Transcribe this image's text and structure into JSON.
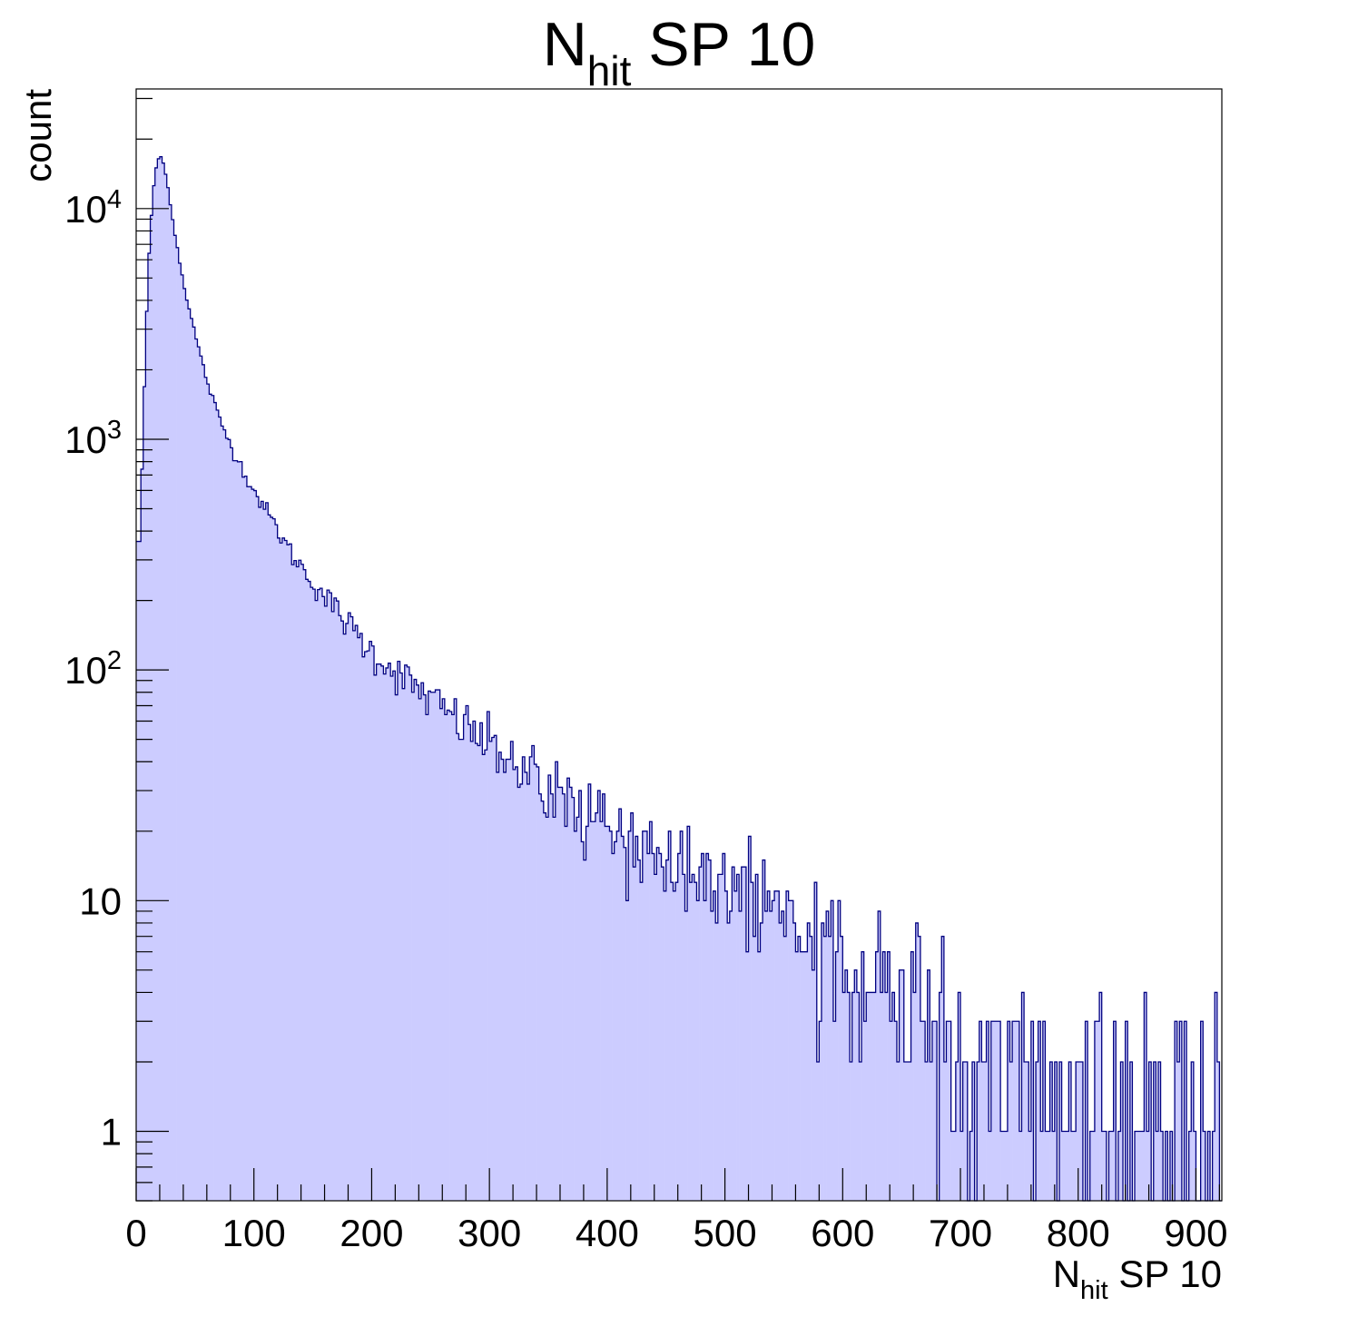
{
  "chart_data": {
    "type": "bar",
    "title": {
      "main": "N",
      "sub": "hit",
      "rest": " SP 10"
    },
    "xlabel": {
      "main": "N",
      "sub": "hit",
      "rest": " SP 10"
    },
    "ylabel": "count",
    "xlim": [
      0,
      922
    ],
    "ylim": [
      0.5,
      33000
    ],
    "yscale": "log",
    "grid": false,
    "legend": "none",
    "bin_width": 2,
    "x_ticks": [
      {
        "value": 0,
        "label": "0"
      },
      {
        "value": 100,
        "label": "100"
      },
      {
        "value": 200,
        "label": "200"
      },
      {
        "value": 300,
        "label": "300"
      },
      {
        "value": 400,
        "label": "400"
      },
      {
        "value": 500,
        "label": "500"
      },
      {
        "value": 600,
        "label": "600"
      },
      {
        "value": 700,
        "label": "700"
      },
      {
        "value": 800,
        "label": "800"
      },
      {
        "value": 900,
        "label": "900"
      }
    ],
    "y_ticks": [
      {
        "value": 1,
        "label": "1",
        "exp": ""
      },
      {
        "value": 10,
        "label": "10",
        "exp": ""
      },
      {
        "value": 100,
        "label": "10",
        "exp": "2"
      },
      {
        "value": 1000,
        "label": "10",
        "exp": "3"
      },
      {
        "value": 10000,
        "label": "10",
        "exp": "4"
      }
    ],
    "colors": {
      "fill": "#ccccff",
      "line": "#000080"
    },
    "profile_points": [
      {
        "x": 0,
        "y": 500
      },
      {
        "x": 2,
        "y": 260
      },
      {
        "x": 4,
        "y": 500
      },
      {
        "x": 6,
        "y": 1100
      },
      {
        "x": 8,
        "y": 2600
      },
      {
        "x": 10,
        "y": 5000
      },
      {
        "x": 12,
        "y": 8000
      },
      {
        "x": 14,
        "y": 11000
      },
      {
        "x": 16,
        "y": 14000
      },
      {
        "x": 18,
        "y": 16000
      },
      {
        "x": 20,
        "y": 17000
      },
      {
        "x": 22,
        "y": 16500
      },
      {
        "x": 24,
        "y": 15000
      },
      {
        "x": 28,
        "y": 11500
      },
      {
        "x": 32,
        "y": 8300
      },
      {
        "x": 36,
        "y": 6300
      },
      {
        "x": 40,
        "y": 4800
      },
      {
        "x": 46,
        "y": 3500
      },
      {
        "x": 52,
        "y": 2600
      },
      {
        "x": 60,
        "y": 1800
      },
      {
        "x": 70,
        "y": 1250
      },
      {
        "x": 80,
        "y": 950
      },
      {
        "x": 90,
        "y": 750
      },
      {
        "x": 100,
        "y": 600
      },
      {
        "x": 115,
        "y": 450
      },
      {
        "x": 130,
        "y": 330
      },
      {
        "x": 150,
        "y": 240
      },
      {
        "x": 175,
        "y": 170
      },
      {
        "x": 200,
        "y": 120
      },
      {
        "x": 230,
        "y": 90
      },
      {
        "x": 260,
        "y": 68
      },
      {
        "x": 300,
        "y": 48
      },
      {
        "x": 350,
        "y": 32
      },
      {
        "x": 400,
        "y": 22
      },
      {
        "x": 450,
        "y": 15
      },
      {
        "x": 500,
        "y": 11
      },
      {
        "x": 550,
        "y": 8
      },
      {
        "x": 600,
        "y": 5.5
      },
      {
        "x": 650,
        "y": 4
      },
      {
        "x": 700,
        "y": 2.8
      },
      {
        "x": 750,
        "y": 2
      },
      {
        "x": 800,
        "y": 1.6
      },
      {
        "x": 850,
        "y": 1.3
      },
      {
        "x": 900,
        "y": 1
      },
      {
        "x": 922,
        "y": 1
      }
    ]
  }
}
